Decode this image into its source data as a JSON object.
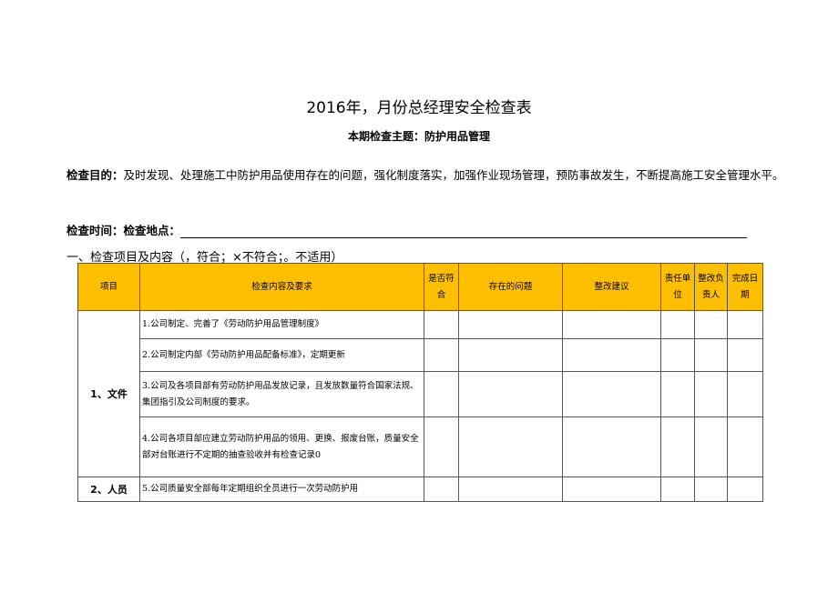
{
  "title": "2016年，月份总经理安全检查表",
  "subtitle": "本期检查主题：防护用品管理",
  "purpose": {
    "label": "检查目的：",
    "text": "及时发现、处理施工中防护用品使用存在的问题，强化制度落实，加强作业现场管理，预防事故发生，不断提高施工安全管理水平。"
  },
  "time_place": "检查时间：检查地点：",
  "section": "一、检查项目及内容（，符合；×不符合；。不适用）",
  "table": {
    "headers": [
      "项目",
      "检查内容及要求",
      "是否符合",
      "存在的问题",
      "整改建议",
      "责任单位",
      "整改负责人",
      "完成日期"
    ],
    "groups": [
      {
        "item": "1、文件",
        "rows": [
          "1.公司制定、完善了《劳动防护用品管理制度》",
          "2.公司制定内部《劳动防护用品配备标准》，定期更新",
          "3.公司及各项目部有劳动防护用品发放记录，且发放数量符合国家法规、集团指引及公司制度的要求。",
          "4.公司各项目部应建立劳动防护用品的领用、更换、报废台账，质量安全部对台账进行不定期的抽查验收并有检查记录0"
        ]
      },
      {
        "item": "2、人员",
        "rows": [
          "5.公司质量安全部每年定期组织全员进行一次劳动防护用"
        ]
      }
    ]
  },
  "colors": {
    "header_bg": "#fdbf00"
  }
}
